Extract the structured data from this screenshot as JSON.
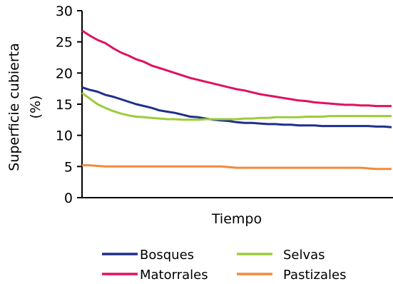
{
  "chart_data": {
    "type": "line",
    "title": "",
    "xlabel": "Tiempo",
    "ylabel_line1": "Superficie cubierta",
    "ylabel_line2": "(%)",
    "ylim": [
      0,
      30
    ],
    "yticks": [
      "0",
      "5",
      "10",
      "15",
      "20",
      "25",
      "30"
    ],
    "grid": false,
    "legend_position": "bottom",
    "x": [
      0,
      1,
      2,
      3,
      4,
      5,
      6,
      7,
      8,
      9,
      10,
      11,
      12,
      13,
      14,
      15,
      16,
      17,
      18,
      19,
      20,
      21,
      22,
      23,
      24,
      25,
      26,
      27,
      28,
      29,
      30,
      31,
      32,
      33,
      34,
      35,
      36,
      37,
      38,
      39,
      40
    ],
    "series": [
      {
        "name": "Bosques",
        "color": "#1f2f8c",
        "values": [
          17.7,
          17.3,
          17.0,
          16.5,
          16.2,
          15.8,
          15.4,
          15.0,
          14.7,
          14.4,
          14.0,
          13.8,
          13.6,
          13.3,
          13.0,
          12.9,
          12.7,
          12.5,
          12.4,
          12.3,
          12.1,
          12.0,
          12.0,
          11.9,
          11.8,
          11.8,
          11.7,
          11.7,
          11.6,
          11.6,
          11.6,
          11.5,
          11.5,
          11.5,
          11.5,
          11.5,
          11.5,
          11.5,
          11.4,
          11.4,
          11.3
        ]
      },
      {
        "name": "Selvas",
        "color": "#9dcb3a",
        "values": [
          16.8,
          15.9,
          15.0,
          14.4,
          13.9,
          13.5,
          13.2,
          13.0,
          12.9,
          12.8,
          12.7,
          12.6,
          12.6,
          12.5,
          12.5,
          12.5,
          12.6,
          12.6,
          12.6,
          12.6,
          12.6,
          12.7,
          12.7,
          12.8,
          12.8,
          12.9,
          12.9,
          12.9,
          12.9,
          13.0,
          13.0,
          13.0,
          13.1,
          13.1,
          13.1,
          13.1,
          13.1,
          13.1,
          13.1,
          13.1,
          13.1
        ]
      },
      {
        "name": "Matorrales",
        "color": "#e0115f",
        "values": [
          26.8,
          26.0,
          25.3,
          24.8,
          24.0,
          23.3,
          22.8,
          22.2,
          21.8,
          21.2,
          20.8,
          20.4,
          20.0,
          19.6,
          19.2,
          18.9,
          18.6,
          18.3,
          18.0,
          17.7,
          17.4,
          17.2,
          16.9,
          16.6,
          16.4,
          16.2,
          16.0,
          15.8,
          15.6,
          15.5,
          15.3,
          15.2,
          15.1,
          15.0,
          14.9,
          14.9,
          14.8,
          14.8,
          14.7,
          14.7,
          14.7
        ]
      },
      {
        "name": "Pastizales",
        "color": "#f28a3c",
        "values": [
          5.2,
          5.2,
          5.1,
          5.0,
          5.0,
          5.0,
          5.0,
          5.0,
          5.0,
          5.0,
          5.0,
          5.0,
          5.0,
          5.0,
          5.0,
          5.0,
          5.0,
          5.0,
          5.0,
          4.9,
          4.8,
          4.8,
          4.8,
          4.8,
          4.8,
          4.8,
          4.8,
          4.8,
          4.8,
          4.8,
          4.8,
          4.8,
          4.8,
          4.8,
          4.8,
          4.8,
          4.8,
          4.7,
          4.6,
          4.6,
          4.6
        ]
      }
    ]
  }
}
